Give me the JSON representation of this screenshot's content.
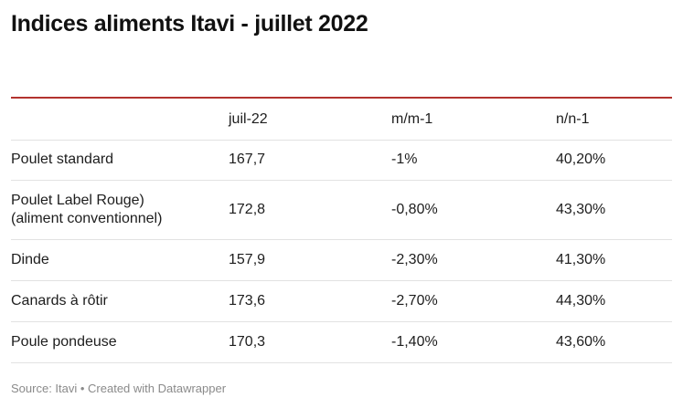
{
  "title": "Indices aliments Itavi - juillet 2022",
  "table": {
    "header": [
      "",
      "juil-22",
      "m/m-1",
      "n/n-1"
    ],
    "rows": [
      [
        "Poulet standard",
        "167,7",
        "-1%",
        "40,20%"
      ],
      [
        "Poulet Label Rouge)\n(aliment conventionnel)",
        "172,8",
        "-0,80%",
        "43,30%"
      ],
      [
        "Dinde",
        "157,9",
        "-2,30%",
        "41,30%"
      ],
      [
        "Canards à rôtir",
        "173,6",
        "-2,70%",
        "44,30%"
      ],
      [
        "Poule pondeuse",
        "170,3",
        "-1,40%",
        "43,60%"
      ]
    ]
  },
  "source": "Source: Itavi • Created with Datawrapper"
}
